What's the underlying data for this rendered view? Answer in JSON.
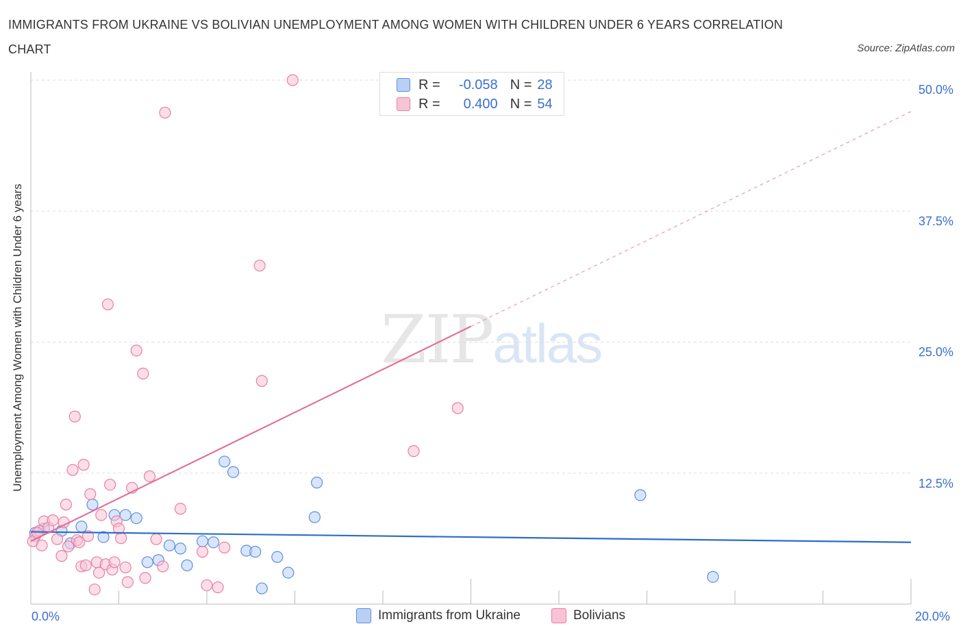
{
  "title": "IMMIGRANTS FROM UKRAINE VS BOLIVIAN UNEMPLOYMENT AMONG WOMEN WITH CHILDREN UNDER 6 YEARS CORRELATION CHART",
  "source": "Source: ZipAtlas.com",
  "watermark": {
    "zip": "ZIP",
    "atlas": "atlas"
  },
  "colors": {
    "ukraine": "#5b8ee0",
    "ukraine_fill": "#b9d0f5",
    "bolivia": "#e87fa3",
    "bolivia_fill": "#f8c3d6",
    "ukraine_line": "#2a6ccc",
    "bolivia_line": "#e0709a",
    "axis_text": "#3a6fd0"
  },
  "legend": {
    "rows": [
      {
        "r_label": "R =",
        "r_value": "-0.058",
        "n_label": "N =",
        "n_value": "28"
      },
      {
        "r_label": "R =",
        "r_value": "0.400",
        "n_label": "N =",
        "n_value": "54"
      }
    ]
  },
  "bottom_legend": {
    "ukraine": "Immigrants from Ukraine",
    "bolivia": "Bolivians"
  },
  "chart_data": {
    "type": "scatter",
    "title": "IMMIGRANTS FROM UKRAINE VS BOLIVIAN UNEMPLOYMENT AMONG WOMEN WITH CHILDREN UNDER 6 YEARS CORRELATION CHART",
    "xlabel": "",
    "ylabel": "Unemployment Among Women with Children Under 6 years",
    "xlim": [
      0,
      20
    ],
    "ylim": [
      0,
      50
    ],
    "x_tick_labels": [
      "0.0%",
      "20.0%"
    ],
    "y_ticks": [
      12.5,
      25.0,
      37.5,
      50.0
    ],
    "y_tick_labels": [
      "12.5%",
      "25.0%",
      "37.5%",
      "50.0%"
    ],
    "grid": true,
    "series": [
      {
        "name": "Immigrants from Ukraine",
        "points": [
          [
            0.1,
            6.8
          ],
          [
            0.3,
            7.2
          ],
          [
            0.7,
            7.0
          ],
          [
            0.9,
            5.8
          ],
          [
            1.15,
            7.4
          ],
          [
            1.4,
            9.5
          ],
          [
            1.65,
            6.4
          ],
          [
            1.9,
            8.5
          ],
          [
            2.15,
            8.5
          ],
          [
            2.4,
            8.2
          ],
          [
            2.65,
            4.0
          ],
          [
            2.9,
            4.2
          ],
          [
            3.15,
            5.6
          ],
          [
            3.4,
            5.3
          ],
          [
            3.55,
            3.7
          ],
          [
            3.9,
            6.0
          ],
          [
            4.15,
            5.9
          ],
          [
            4.4,
            13.6
          ],
          [
            4.6,
            12.6
          ],
          [
            4.9,
            5.1
          ],
          [
            5.1,
            5.0
          ],
          [
            5.25,
            1.5
          ],
          [
            5.6,
            4.5
          ],
          [
            5.85,
            3.0
          ],
          [
            6.45,
            8.3
          ],
          [
            6.5,
            11.6
          ],
          [
            13.85,
            10.4
          ],
          [
            15.5,
            2.6
          ]
        ],
        "trend": {
          "x0": 0,
          "y0": 6.9,
          "x1": 20,
          "y1": 5.9,
          "style": "solid"
        }
      },
      {
        "name": "Bolivians",
        "points": [
          [
            0.1,
            6.5
          ],
          [
            0.2,
            7.0
          ],
          [
            0.3,
            7.9
          ],
          [
            0.4,
            7.3
          ],
          [
            0.5,
            8.0
          ],
          [
            0.6,
            6.2
          ],
          [
            0.7,
            4.6
          ],
          [
            0.75,
            7.8
          ],
          [
            0.8,
            9.5
          ],
          [
            0.85,
            5.5
          ],
          [
            0.95,
            12.8
          ],
          [
            1.0,
            17.9
          ],
          [
            1.05,
            6.1
          ],
          [
            1.1,
            5.9
          ],
          [
            1.15,
            3.6
          ],
          [
            1.2,
            13.3
          ],
          [
            1.3,
            6.5
          ],
          [
            1.35,
            10.5
          ],
          [
            1.45,
            1.4
          ],
          [
            1.5,
            4.0
          ],
          [
            1.55,
            3.0
          ],
          [
            1.6,
            8.5
          ],
          [
            1.7,
            3.8
          ],
          [
            1.75,
            28.6
          ],
          [
            1.8,
            11.4
          ],
          [
            1.85,
            3.3
          ],
          [
            1.9,
            4.0
          ],
          [
            1.95,
            7.9
          ],
          [
            2.0,
            7.2
          ],
          [
            2.05,
            6.3
          ],
          [
            2.15,
            3.5
          ],
          [
            2.2,
            2.1
          ],
          [
            2.3,
            11.1
          ],
          [
            2.4,
            24.2
          ],
          [
            2.55,
            22.0
          ],
          [
            2.6,
            2.5
          ],
          [
            2.7,
            12.2
          ],
          [
            2.85,
            6.2
          ],
          [
            3.0,
            3.6
          ],
          [
            3.05,
            46.9
          ],
          [
            3.4,
            9.1
          ],
          [
            3.9,
            5.0
          ],
          [
            4.0,
            1.8
          ],
          [
            4.25,
            1.6
          ],
          [
            4.4,
            5.4
          ],
          [
            5.2,
            32.3
          ],
          [
            5.25,
            21.3
          ],
          [
            5.95,
            50.0
          ],
          [
            8.7,
            14.6
          ],
          [
            9.7,
            18.7
          ],
          [
            0.05,
            6.0
          ],
          [
            0.15,
            6.8
          ],
          [
            0.25,
            5.6
          ],
          [
            1.25,
            3.7
          ]
        ],
        "trend": {
          "x0": 0,
          "y0": 6.0,
          "x1": 10,
          "y1": 26.5,
          "style": "solid",
          "extension": {
            "x1": 20,
            "y1": 47.0,
            "style": "dashed"
          }
        }
      }
    ]
  }
}
